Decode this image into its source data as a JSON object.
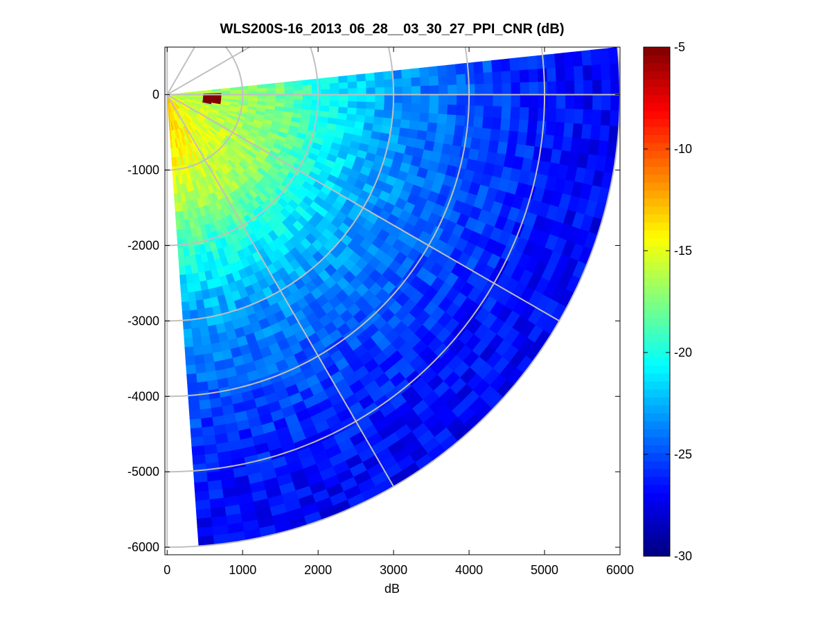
{
  "chart_data": {
    "type": "heatmap",
    "subtype": "polar-ppi-sector",
    "title": "WLS200S-16_2013_06_28__03_30_27_PPI_CNR (dB)",
    "xlabel": "dB",
    "ylabel": "",
    "xlim": [
      -30,
      6000
    ],
    "ylim": [
      -6100,
      630
    ],
    "xticks": [
      0,
      1000,
      2000,
      3000,
      4000,
      5000,
      6000
    ],
    "xtick_labels": [
      "0",
      "1000",
      "2000",
      "3000",
      "4000",
      "5000",
      "6000"
    ],
    "yticks": [
      0,
      -1000,
      -2000,
      -3000,
      -4000,
      -5000,
      -6000
    ],
    "ytick_labels": [
      "0",
      "-1000",
      "-2000",
      "-3000",
      "-4000",
      "-5000",
      "-6000"
    ],
    "sector": {
      "origin": [
        0,
        0
      ],
      "max_range": 6000,
      "math_angle_start_deg": -86,
      "math_angle_end_deg": 6,
      "range_gates": 50,
      "azimuth_steps": 46
    },
    "grid": {
      "ring_radii": [
        1000,
        2000,
        3000,
        4000,
        5000,
        6000
      ],
      "spoke_angles_deg": [
        -90,
        -60,
        -30,
        0,
        30,
        60,
        90
      ],
      "color": "#c0c0c0"
    },
    "cnr_profile": {
      "range_km": [
        0,
        0.5,
        1,
        1.5,
        2,
        2.5,
        3,
        3.5,
        4,
        4.5,
        5,
        5.5,
        6
      ],
      "cnr_db": [
        -14,
        -15,
        -15.8,
        -17,
        -19.5,
        -21.5,
        -23,
        -24,
        -24.8,
        -25.6,
        -26.3,
        -26.8,
        -27
      ]
    },
    "features": {
      "near_vertical_max_db": -13.5,
      "near_horizontal_max_db": -17,
      "hot_spot_db": -5,
      "hot_spot_location": [
        650,
        -50
      ]
    },
    "colorbar": {
      "colormap": "jet",
      "clim": [
        -30,
        -5
      ],
      "ticks": [
        -5,
        -10,
        -15,
        -20,
        -25,
        -30
      ],
      "tick_labels": [
        "-5",
        "-10",
        "-15",
        "-20",
        "-25",
        "-30"
      ]
    }
  }
}
